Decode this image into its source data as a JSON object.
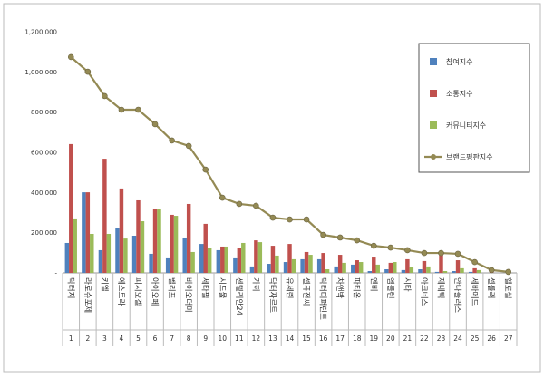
{
  "chart_data": {
    "type": "bar_line",
    "categories": [
      "닥터지",
      "라로슈포제",
      "키엘",
      "에스트라",
      "피지오겔",
      "아이오페",
      "벨리프",
      "바이오더마",
      "세타필",
      "시드물",
      "센텔리안24",
      "가히",
      "닥터자르트",
      "유세린",
      "셀퓨전씨",
      "닥터디퍼런트",
      "차앤박",
      "파티온",
      "엔비",
      "엠플렌",
      "시타",
      "아크네스",
      "제네틱",
      "안나플러스",
      "세바메드",
      "셀룰러",
      "헬로셀"
    ],
    "rank_labels": [
      1,
      2,
      3,
      4,
      5,
      6,
      7,
      8,
      9,
      10,
      11,
      12,
      13,
      14,
      15,
      16,
      17,
      18,
      19,
      20,
      21,
      22,
      23,
      24,
      25,
      26,
      27
    ],
    "series": [
      {
        "name": "참여지수",
        "color": "#4f81bd",
        "kind": "bar",
        "values": [
          149000,
          401000,
          113000,
          221000,
          185000,
          95000,
          77000,
          176000,
          144000,
          113000,
          77000,
          32000,
          45000,
          54000,
          68000,
          68000,
          32000,
          41000,
          9000,
          18000,
          14000,
          18000,
          5000,
          9000,
          5000,
          0,
          0
        ]
      },
      {
        "name": "소통지수",
        "color": "#c0504d",
        "kind": "bar",
        "values": [
          641000,
          401000,
          568000,
          420000,
          361000,
          320000,
          289000,
          343000,
          244000,
          131000,
          122000,
          162000,
          135000,
          144000,
          104000,
          99000,
          90000,
          63000,
          81000,
          50000,
          68000,
          59000,
          95000,
          63000,
          23000,
          5000,
          0
        ]
      },
      {
        "name": "커뮤니티지수",
        "color": "#9bbb59",
        "kind": "bar",
        "values": [
          271000,
          194000,
          194000,
          171000,
          257000,
          320000,
          284000,
          104000,
          126000,
          131000,
          149000,
          153000,
          86000,
          68000,
          90000,
          18000,
          50000,
          54000,
          41000,
          54000,
          27000,
          32000,
          9000,
          23000,
          14000,
          0,
          0
        ]
      },
      {
        "name": "브랜드평판지수",
        "color": "#948a54",
        "kind": "line",
        "values": [
          1074000,
          1001000,
          880000,
          812000,
          812000,
          740000,
          659000,
          632000,
          514000,
          374000,
          343000,
          334000,
          275000,
          266000,
          266000,
          189000,
          176000,
          162000,
          135000,
          126000,
          113000,
          99000,
          99000,
          95000,
          54000,
          14000,
          5000
        ]
      }
    ],
    "ylim": [
      0,
      1200000
    ],
    "yticks": [
      {
        "value": 0,
        "label": "-"
      },
      {
        "value": 200000,
        "label": "200,000"
      },
      {
        "value": 400000,
        "label": "400,000"
      },
      {
        "value": 600000,
        "label": "600,000"
      },
      {
        "value": 800000,
        "label": "800,000"
      },
      {
        "value": 1000000,
        "label": "1,000,000"
      },
      {
        "value": 1200000,
        "label": "1,200,000"
      }
    ],
    "legend": "upper right"
  }
}
